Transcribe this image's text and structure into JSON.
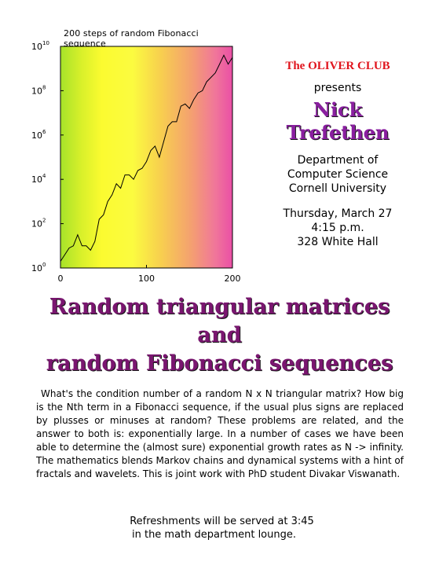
{
  "chart_data": {
    "type": "line",
    "title": "200 steps of random Fibonacci sequence",
    "xlabel": "",
    "ylabel": "",
    "xlim": [
      0,
      200
    ],
    "ylim_log10": [
      0,
      10
    ],
    "yscale": "log",
    "x_ticks": [
      "0",
      "100",
      "200"
    ],
    "y_ticks": [
      {
        "base": "10",
        "exp": "0"
      },
      {
        "base": "10",
        "exp": "2"
      },
      {
        "base": "10",
        "exp": "4"
      },
      {
        "base": "10",
        "exp": "6"
      },
      {
        "base": "10",
        "exp": "8"
      },
      {
        "base": "10",
        "exp": "10"
      }
    ],
    "background": "horizontal gradient green-yellow-orange-pink",
    "series": [
      {
        "color": "#000000",
        "x": [
          0,
          5,
          10,
          15,
          20,
          25,
          30,
          35,
          40,
          45,
          50,
          55,
          60,
          65,
          70,
          75,
          80,
          85,
          90,
          95,
          100,
          105,
          110,
          115,
          120,
          125,
          130,
          135,
          140,
          145,
          150,
          155,
          160,
          165,
          170,
          175,
          180,
          185,
          190,
          195,
          200
        ],
        "y_log10": [
          0.3,
          0.6,
          0.9,
          1.0,
          1.5,
          1.0,
          1.0,
          0.8,
          1.2,
          2.2,
          2.4,
          3.0,
          3.3,
          3.8,
          3.6,
          4.2,
          4.2,
          4.0,
          4.4,
          4.5,
          4.8,
          5.3,
          5.5,
          5.0,
          5.7,
          6.4,
          6.6,
          6.6,
          7.3,
          7.4,
          7.2,
          7.6,
          7.9,
          8.0,
          8.4,
          8.6,
          8.8,
          9.2,
          9.6,
          9.2,
          9.5
        ]
      }
    ]
  },
  "side": {
    "club": "The OLIVER CLUB",
    "presents": "presents",
    "speaker": "Nick Trefethen",
    "dept": [
      "Department of",
      "Computer Science",
      "Cornell University"
    ],
    "when": [
      "Thursday, March 27",
      "4:15 p.m.",
      "328 White Hall"
    ]
  },
  "talk_title": [
    "Random triangular matrices",
    "and",
    "random Fibonacci sequences"
  ],
  "abstract": "What's the condition number of a random N x N triangular matrix? How big is the Nth term in a Fibonacci sequence, if the usual plus signs are replaced by plusses or minuses at random? These problems are related, and the answer to both is:  exponentially large.  In a number of cases we have been  able to determine the (almost sure) exponential growth rates as N -> infinity.  The mathematics blends Markov chains and dynamical systems with a hint of fractals and wavelets. This is joint work with PhD student Divakar Viswanath.",
  "refreshments": [
    "Refreshments will be served at 3:45",
    "in the math department lounge."
  ]
}
